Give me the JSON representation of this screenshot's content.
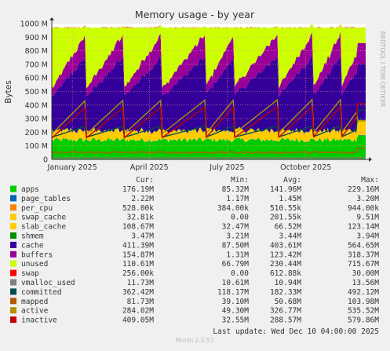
{
  "chart_data": {
    "type": "area",
    "title": "Memory usage - by year",
    "ylabel": "Bytes",
    "side_label": "RRDTOOL / TOBI OETIKER",
    "ylim": [
      0,
      1000
    ],
    "unit": "M",
    "grid": true,
    "y_ticks": [
      0,
      100,
      200,
      300,
      400,
      500,
      600,
      700,
      800,
      900,
      1000
    ],
    "y_tick_labels": [
      "0",
      "100 M",
      "200 M",
      "300 M",
      "400 M",
      "500 M",
      "600 M",
      "700 M",
      "800 M",
      "900 M",
      "1000 M"
    ],
    "x_start": "2024-12-08",
    "x_end": "2025-12-10",
    "x_ticks": [
      {
        "date": "2025-01-01",
        "label": "January 2025"
      },
      {
        "date": "2025-04-01",
        "label": "April 2025"
      },
      {
        "date": "2025-07-01",
        "label": "July 2025"
      },
      {
        "date": "2025-10-01",
        "label": "October 2025"
      }
    ],
    "columns": [
      "Cur:",
      "Min:",
      "Avg:",
      "Max:"
    ],
    "series": [
      {
        "name": "apps",
        "color": "#00cc00",
        "kind": "stack",
        "cur": "176.19M",
        "min": "85.32M",
        "avg": "141.96M",
        "max": "229.16M"
      },
      {
        "name": "page_tables",
        "color": "#0066b3",
        "kind": "stack",
        "cur": "2.22M",
        "min": "1.17M",
        "avg": "1.45M",
        "max": "3.20M"
      },
      {
        "name": "per_cpu",
        "color": "#ff8000",
        "kind": "stack",
        "cur": "528.00k",
        "min": "384.00k",
        "avg": "510.55k",
        "max": "944.00k"
      },
      {
        "name": "swap_cache",
        "color": "#ffcc00",
        "kind": "stack",
        "cur": "32.81k",
        "min": "0.00",
        "avg": "201.55k",
        "max": "9.51M"
      },
      {
        "name": "slab_cache",
        "color": "#ffcc00",
        "kind": "stack",
        "cur": "108.67M",
        "min": "32.47M",
        "avg": "66.52M",
        "max": "123.14M"
      },
      {
        "name": "shmem",
        "color": "#008f00",
        "kind": "stack",
        "cur": "3.47M",
        "min": "3.21M",
        "avg": "3.44M",
        "max": "3.94M"
      },
      {
        "name": "cache",
        "color": "#330099",
        "kind": "stack",
        "cur": "411.39M",
        "min": "87.50M",
        "avg": "403.61M",
        "max": "564.65M"
      },
      {
        "name": "buffers",
        "color": "#990099",
        "kind": "stack",
        "cur": "154.87M",
        "min": "1.31M",
        "avg": "123.42M",
        "max": "318.37M"
      },
      {
        "name": "unused",
        "color": "#ccff00",
        "kind": "stack",
        "cur": "110.61M",
        "min": "66.79M",
        "avg": "230.44M",
        "max": "715.67M"
      },
      {
        "name": "swap",
        "color": "#ff0000",
        "kind": "stack",
        "cur": "256.00k",
        "min": "0.00",
        "avg": "612.88k",
        "max": "30.00M"
      },
      {
        "name": "vmalloc_used",
        "color": "#808080",
        "kind": "line",
        "cur": "11.73M",
        "min": "10.61M",
        "avg": "10.94M",
        "max": "13.56M"
      },
      {
        "name": "committed",
        "color": "#004d4d",
        "kind": "line",
        "cur": "362.42M",
        "min": "118.17M",
        "avg": "182.33M",
        "max": "492.12M"
      },
      {
        "name": "mapped",
        "color": "#b35a00",
        "kind": "line",
        "cur": "81.73M",
        "min": "39.10M",
        "avg": "50.68M",
        "max": "103.98M"
      },
      {
        "name": "active",
        "color": "#b38f00",
        "kind": "line",
        "cur": "284.02M",
        "min": "49.30M",
        "avg": "326.77M",
        "max": "535.52M"
      },
      {
        "name": "inactive",
        "color": "#c00000",
        "kind": "line",
        "cur": "409.05M",
        "min": "32.55M",
        "avg": "288.57M",
        "max": "579.86M"
      }
    ],
    "last_update": "Last update: Wed Dec 10 04:00:00 2025",
    "footer": "Munin 2.0.57"
  }
}
